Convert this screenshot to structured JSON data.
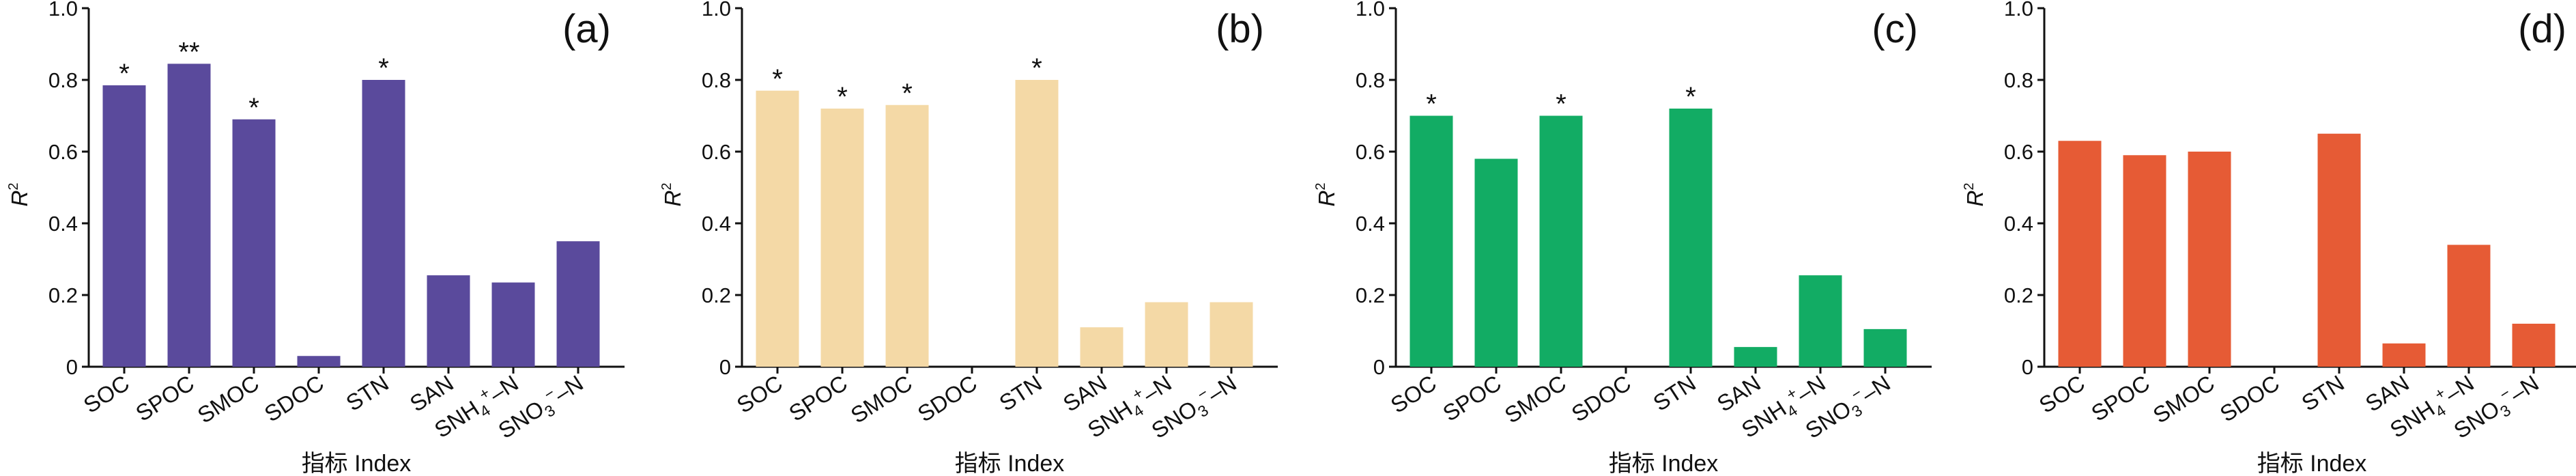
{
  "chart_data": [
    {
      "type": "bar",
      "panel_label": "(a)",
      "color": "#5a4a9c",
      "categories": [
        "SOC",
        "SPOC",
        "SMOC",
        "SDOC",
        "STN",
        "SAN",
        "SNH4+-N",
        "SNO3−-N"
      ],
      "values": [
        0.785,
        0.845,
        0.69,
        0.03,
        0.8,
        0.255,
        0.235,
        0.35
      ],
      "significance": [
        "*",
        "**",
        "*",
        "",
        "*",
        "",
        "",
        ""
      ],
      "xlabel": "指标 Index",
      "ylabel": "R2",
      "ylim": [
        0,
        1.0
      ],
      "yticks": [
        "0",
        "0.2",
        "0.4",
        "0.6",
        "0.8",
        "1.0"
      ]
    },
    {
      "type": "bar",
      "panel_label": "(b)",
      "color": "#f4d9a6",
      "categories": [
        "SOC",
        "SPOC",
        "SMOC",
        "SDOC",
        "STN",
        "SAN",
        "SNH4+-N",
        "SNO3−-N"
      ],
      "values": [
        0.77,
        0.72,
        0.73,
        0,
        0.8,
        0.11,
        0.18,
        0.18
      ],
      "significance": [
        "*",
        "*",
        "*",
        "",
        "*",
        "",
        "",
        ""
      ],
      "xlabel": "指标 Index",
      "ylabel": "R2",
      "ylim": [
        0,
        1.0
      ],
      "yticks": [
        "0",
        "0.2",
        "0.4",
        "0.6",
        "0.8",
        "1.0"
      ]
    },
    {
      "type": "bar",
      "panel_label": "(c)",
      "color": "#12ac64",
      "categories": [
        "SOC",
        "SPOC",
        "SMOC",
        "SDOC",
        "STN",
        "SAN",
        "SNH4+-N",
        "SNO3−-N"
      ],
      "values": [
        0.7,
        0.58,
        0.7,
        0,
        0.72,
        0.055,
        0.255,
        0.105
      ],
      "significance": [
        "*",
        "",
        "*",
        "",
        "*",
        "",
        "",
        ""
      ],
      "xlabel": "指标 Index",
      "ylabel": "R2",
      "ylim": [
        0,
        1.0
      ],
      "yticks": [
        "0",
        "0.2",
        "0.4",
        "0.6",
        "0.8",
        "1.0"
      ]
    },
    {
      "type": "bar",
      "panel_label": "(d)",
      "color": "#e65b35",
      "categories": [
        "SOC",
        "SPOC",
        "SMOC",
        "SDOC",
        "STN",
        "SAN",
        "SNH4+-N",
        "SNO3−-N"
      ],
      "values": [
        0.63,
        0.59,
        0.6,
        0,
        0.65,
        0.065,
        0.34,
        0.12
      ],
      "significance": [
        "",
        "",
        "",
        "",
        "",
        "",
        "",
        ""
      ],
      "xlabel": "指标 Index",
      "ylabel": "R2",
      "ylim": [
        0,
        1.0
      ],
      "yticks": [
        "0",
        "0.2",
        "0.4",
        "0.6",
        "0.8",
        "1.0"
      ]
    }
  ]
}
